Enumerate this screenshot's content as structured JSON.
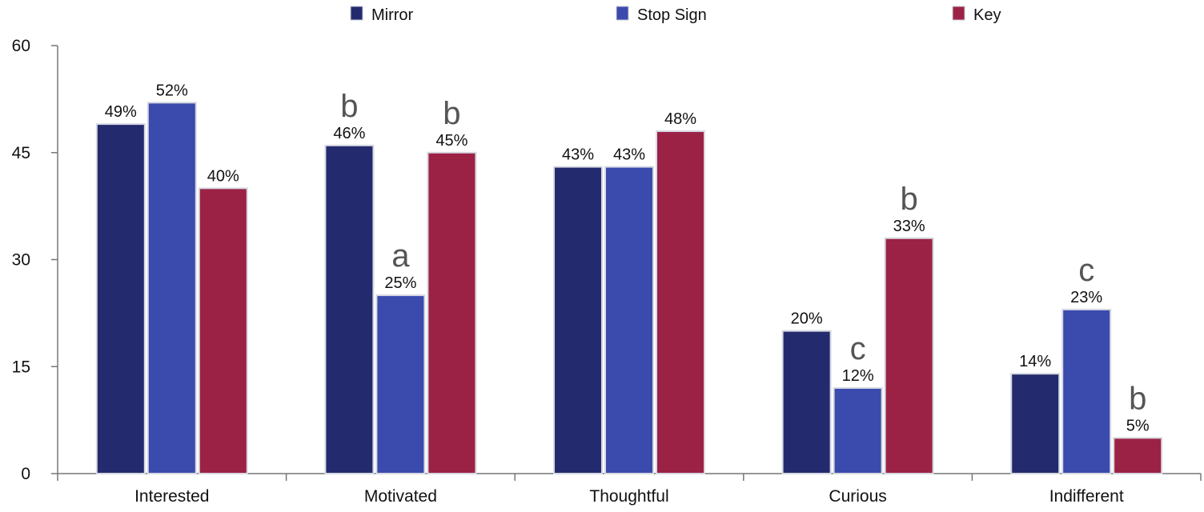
{
  "chart_data": {
    "type": "bar",
    "title": "",
    "xlabel": "",
    "ylabel": "",
    "ylim": [
      0,
      60
    ],
    "yticks": [
      0,
      15,
      30,
      45,
      60
    ],
    "grid": false,
    "legend_position": "top",
    "categories": [
      "Interested",
      "Motivated",
      "Thoughtful",
      "Curious",
      "Indifferent"
    ],
    "series": [
      {
        "name": "Mirror",
        "color": "#232b6e",
        "values": [
          49,
          46,
          43,
          20,
          14
        ],
        "labels": [
          "49%",
          "46%",
          "43%",
          "20%",
          "14%"
        ],
        "annotations": [
          "",
          "b",
          "",
          "",
          ""
        ]
      },
      {
        "name": "Stop Sign",
        "color": "#3a4aad",
        "values": [
          52,
          25,
          43,
          12,
          23
        ],
        "labels": [
          "52%",
          "25%",
          "43%",
          "12%",
          "23%"
        ],
        "annotations": [
          "",
          "a",
          "",
          "c",
          "c"
        ]
      },
      {
        "name": "Key",
        "color": "#9b2245",
        "values": [
          40,
          45,
          48,
          33,
          5
        ],
        "labels": [
          "40%",
          "45%",
          "48%",
          "33%",
          "5%"
        ],
        "annotations": [
          "",
          "b",
          "",
          "b",
          "b"
        ]
      }
    ]
  }
}
